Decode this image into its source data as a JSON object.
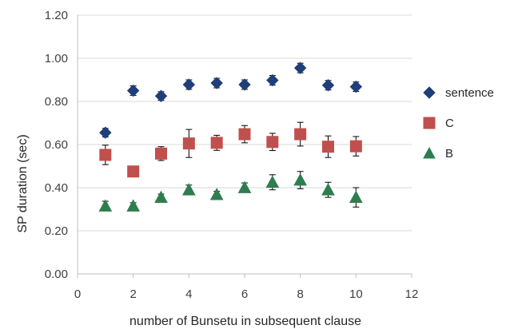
{
  "chart_data": {
    "type": "scatter",
    "xlabel": "number of Bunsetu in subsequent clause",
    "ylabel": "SP duration (sec)",
    "xlim": [
      0,
      12
    ],
    "ylim": [
      0,
      1.2
    ],
    "x_ticks": [
      0,
      2,
      4,
      6,
      8,
      10,
      12
    ],
    "x_tick_labels": [
      "0",
      "2",
      "4",
      "6",
      "8",
      "10",
      "12"
    ],
    "y_ticks": [
      0,
      0.2,
      0.4,
      0.6,
      0.8,
      1.0,
      1.2
    ],
    "y_tick_labels": [
      "0.00",
      "0.20",
      "0.40",
      "0.60",
      "0.80",
      "1.00",
      "1.20"
    ],
    "grid": "horizontal",
    "legend_position": "right",
    "series": [
      {
        "name": "sentence",
        "marker": "diamond",
        "color": "#1F3E7A",
        "x": [
          1,
          2,
          3,
          4,
          5,
          6,
          7,
          8,
          9,
          10
        ],
        "y": [
          0.655,
          0.85,
          0.825,
          0.878,
          0.885,
          0.878,
          0.898,
          0.955,
          0.875,
          0.868
        ],
        "err": [
          0.02,
          0.022,
          0.02,
          0.022,
          0.022,
          0.022,
          0.022,
          0.022,
          0.022,
          0.022
        ]
      },
      {
        "name": "C",
        "marker": "square",
        "color": "#C0504D",
        "x": [
          1,
          2,
          3,
          4,
          5,
          6,
          7,
          8,
          9,
          10
        ],
        "y": [
          0.552,
          0.475,
          0.558,
          0.605,
          0.608,
          0.648,
          0.612,
          0.648,
          0.59,
          0.592
        ],
        "err": [
          0.045,
          0.012,
          0.032,
          0.065,
          0.035,
          0.04,
          0.04,
          0.055,
          0.05,
          0.045
        ]
      },
      {
        "name": "B",
        "marker": "triangle",
        "color": "#2E7D4F",
        "x": [
          1,
          2,
          3,
          4,
          5,
          6,
          7,
          8,
          9,
          10
        ],
        "y": [
          0.315,
          0.315,
          0.355,
          0.39,
          0.368,
          0.4,
          0.425,
          0.435,
          0.39,
          0.355
        ],
        "err": [
          0.022,
          0.015,
          0.015,
          0.022,
          0.015,
          0.022,
          0.035,
          0.04,
          0.035,
          0.045
        ]
      }
    ]
  }
}
